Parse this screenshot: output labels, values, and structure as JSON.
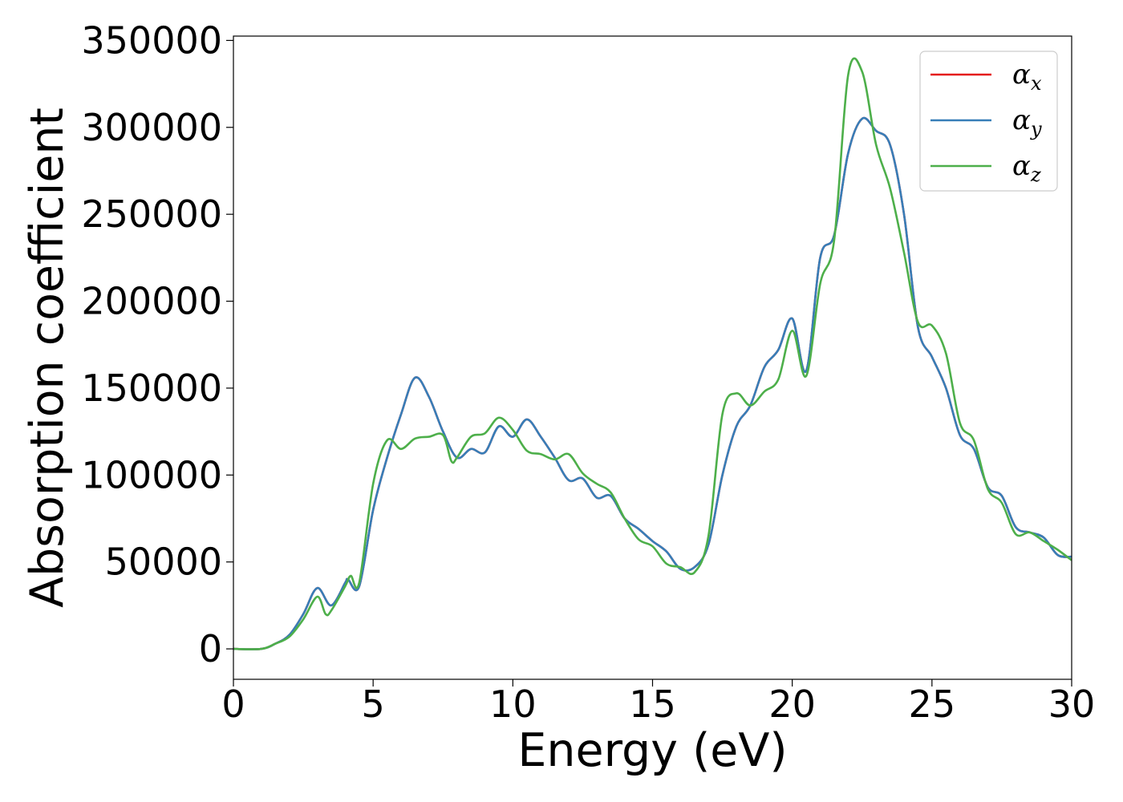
{
  "chart_data": {
    "type": "line",
    "title": "",
    "xlabel": "Energy (eV)",
    "ylabel": "Absorption coefficient",
    "xlim": [
      0,
      30
    ],
    "ylim": [
      -17500,
      352500
    ],
    "xticks": [
      0,
      5,
      10,
      15,
      20,
      25,
      30
    ],
    "xtick_labels": [
      "0",
      "5",
      "10",
      "15",
      "20",
      "25",
      "30"
    ],
    "yticks": [
      0,
      50000,
      100000,
      150000,
      200000,
      250000,
      300000,
      350000
    ],
    "ytick_labels": [
      "0",
      "50000",
      "100000",
      "150000",
      "200000",
      "250000",
      "300000",
      "350000"
    ],
    "grid": false,
    "legend_position": "top-right",
    "series": [
      {
        "name": "α",
        "subscript": "x",
        "color": "#e41a1c",
        "x": [
          0,
          1,
          1.5,
          2,
          2.5,
          3,
          3.5,
          4,
          4.1,
          4.5,
          5,
          5.5,
          6,
          6.5,
          7,
          7.5,
          8,
          8.5,
          9,
          9.5,
          10,
          10.5,
          11,
          11.5,
          12,
          12.5,
          13,
          13.5,
          14,
          14.5,
          15,
          15.5,
          16,
          16.5,
          17,
          17.5,
          18,
          18.5,
          19,
          19.5,
          20,
          20.5,
          21,
          21.5,
          22,
          22.5,
          23,
          23.5,
          24,
          24.5,
          25,
          25.5,
          26,
          26.5,
          27,
          27.5,
          28,
          28.5,
          29,
          29.5,
          30
        ],
        "y": [
          0,
          0,
          3000,
          8000,
          20000,
          35000,
          25000,
          38000,
          40000,
          36000,
          80000,
          110000,
          135000,
          156000,
          145000,
          125000,
          110000,
          115000,
          113000,
          128000,
          122000,
          132000,
          122000,
          110000,
          97000,
          98000,
          87000,
          88000,
          75000,
          69000,
          62000,
          56000,
          46000,
          47000,
          60000,
          100000,
          128000,
          140000,
          162000,
          172000,
          190000,
          160000,
          225000,
          238000,
          285000,
          305000,
          298000,
          290000,
          250000,
          185000,
          168000,
          150000,
          123000,
          115000,
          93000,
          88000,
          70000,
          67000,
          64000,
          54000,
          53000
        ]
      },
      {
        "name": "α",
        "subscript": "y",
        "color": "#377eb8",
        "x": [
          0,
          1,
          1.5,
          2,
          2.5,
          3,
          3.5,
          4,
          4.1,
          4.5,
          5,
          5.5,
          6,
          6.5,
          7,
          7.5,
          8,
          8.5,
          9,
          9.5,
          10,
          10.5,
          11,
          11.5,
          12,
          12.5,
          13,
          13.5,
          14,
          14.5,
          15,
          15.5,
          16,
          16.5,
          17,
          17.5,
          18,
          18.5,
          19,
          19.5,
          20,
          20.5,
          21,
          21.5,
          22,
          22.5,
          23,
          23.5,
          24,
          24.5,
          25,
          25.5,
          26,
          26.5,
          27,
          27.5,
          28,
          28.5,
          29,
          29.5,
          30
        ],
        "y": [
          0,
          0,
          3000,
          8000,
          20000,
          35000,
          25000,
          38000,
          40000,
          36000,
          80000,
          110000,
          135000,
          156000,
          145000,
          125000,
          110000,
          115000,
          113000,
          128000,
          122000,
          132000,
          122000,
          110000,
          97000,
          98000,
          87000,
          88000,
          75000,
          69000,
          62000,
          56000,
          46000,
          47000,
          60000,
          100000,
          128000,
          140000,
          162000,
          172000,
          190000,
          160000,
          225000,
          238000,
          285000,
          305000,
          298000,
          290000,
          250000,
          185000,
          168000,
          150000,
          123000,
          115000,
          93000,
          88000,
          70000,
          67000,
          64000,
          54000,
          53000
        ]
      },
      {
        "name": "α",
        "subscript": "z",
        "color": "#4daf4a",
        "x": [
          0,
          1,
          1.5,
          2,
          2.5,
          3,
          3.3,
          3.5,
          4,
          4.2,
          4.5,
          5,
          5.5,
          6,
          6.5,
          7,
          7.5,
          7.8,
          8,
          8.5,
          9,
          9.5,
          10,
          10.5,
          11,
          11.5,
          12,
          12.5,
          13,
          13.5,
          14,
          14.5,
          15,
          15.5,
          16,
          16.5,
          17,
          17.5,
          18,
          18.5,
          19,
          19.5,
          20,
          20.5,
          21,
          21.5,
          22,
          22.5,
          23,
          23.5,
          24,
          24.5,
          25,
          25.5,
          26,
          26.5,
          27,
          27.5,
          28,
          28.5,
          29,
          29.5,
          30
        ],
        "y": [
          0,
          0,
          3000,
          7000,
          17000,
          30000,
          20000,
          22000,
          36000,
          42000,
          38000,
          95000,
          120000,
          115000,
          121000,
          122000,
          123000,
          108000,
          110000,
          122000,
          124000,
          133000,
          126000,
          114000,
          112000,
          109000,
          112000,
          101000,
          95000,
          90000,
          75000,
          63000,
          59000,
          49000,
          47000,
          44000,
          65000,
          135000,
          147000,
          140000,
          148000,
          155000,
          183000,
          157000,
          210000,
          235000,
          330000,
          332000,
          290000,
          265000,
          228000,
          188000,
          186000,
          170000,
          130000,
          120000,
          92000,
          84000,
          66000,
          67000,
          62000,
          57000,
          51000
        ]
      }
    ]
  }
}
